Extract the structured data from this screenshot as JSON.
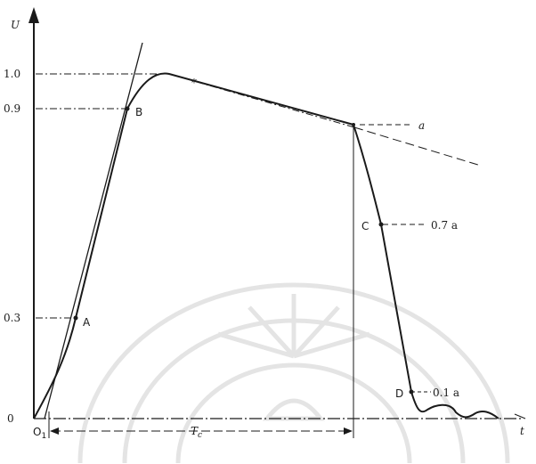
{
  "axes": {
    "y_label": "U",
    "x_label": "t",
    "y_ticks": [
      {
        "label": "1.0"
      },
      {
        "label": "0.9"
      },
      {
        "label": "0.3"
      },
      {
        "label": "0"
      }
    ]
  },
  "points": {
    "A": "A",
    "B": "B",
    "C": "C",
    "D": "D"
  },
  "origin_label": "O",
  "origin_sub": "1",
  "annotations": {
    "a": "a",
    "point_seven_a": "0.7 a",
    "point_one_a": "0.1 a",
    "star": "*"
  },
  "duration": {
    "label": "T",
    "sub": "c"
  },
  "colors": {
    "ink": "#1a1a1a",
    "watermark": "#d9d9d9"
  }
}
